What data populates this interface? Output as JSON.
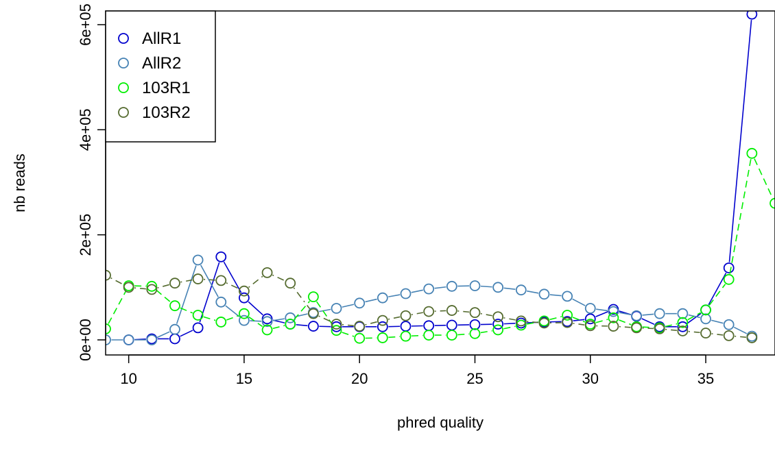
{
  "chart_data": {
    "type": "scatter",
    "xlabel": "phred quality",
    "ylabel": "nb reads",
    "xlim": [
      9,
      38
    ],
    "ylim": [
      0,
      620000
    ],
    "x_ticks": [
      10,
      15,
      20,
      25,
      30,
      35
    ],
    "y_ticks": [
      0,
      200000,
      400000,
      600000
    ],
    "y_tick_labels": [
      "0e+00",
      "2e+05",
      "4e+05",
      "6e+05"
    ],
    "grid": false,
    "legend_position": "top-left",
    "x": [
      9,
      10,
      11,
      12,
      13,
      14,
      15,
      16,
      17,
      18,
      19,
      20,
      21,
      22,
      23,
      24,
      25,
      26,
      27,
      28,
      29,
      30,
      31,
      32,
      33,
      34,
      35,
      36,
      37,
      38
    ],
    "series": [
      {
        "name": "AllR1",
        "color": "#0000CD",
        "line_style": "solid",
        "values": [
          null,
          0,
          2000,
          2000,
          23000,
          158000,
          80000,
          40000,
          30000,
          26000,
          25000,
          25000,
          25000,
          26000,
          27000,
          28000,
          29000,
          30000,
          32000,
          34000,
          35000,
          40000,
          58000,
          45000,
          25000,
          25000,
          57000,
          137000,
          620000,
          null
        ]
      },
      {
        "name": "AllR2",
        "color": "#4682B4",
        "line_style": "solid",
        "values": [
          0,
          0,
          0,
          20000,
          152000,
          72000,
          37000,
          35000,
          42000,
          52000,
          60000,
          70000,
          80000,
          88000,
          97000,
          102000,
          103000,
          100000,
          95000,
          87000,
          83000,
          60000,
          54000,
          46000,
          50000,
          50000,
          40000,
          29000,
          7000,
          null
        ]
      },
      {
        "name": "103R1",
        "color": "#00EE00",
        "line_style": "dashed",
        "values": [
          21000,
          103000,
          102000,
          65000,
          47000,
          34000,
          50000,
          19000,
          30000,
          82000,
          18000,
          3000,
          4000,
          7000,
          9000,
          9000,
          12000,
          19000,
          28000,
          36000,
          47000,
          30000,
          42000,
          25000,
          23000,
          33000,
          57000,
          115000,
          355000,
          260000
        ]
      },
      {
        "name": "103R2",
        "color": "#556B2F",
        "line_style": "dotdash",
        "values": [
          123000,
          100000,
          96000,
          108000,
          116000,
          113000,
          93000,
          128000,
          108000,
          50000,
          30000,
          26000,
          37000,
          46000,
          54000,
          56000,
          52000,
          44000,
          36000,
          32000,
          33000,
          27000,
          26000,
          23000,
          21000,
          17000,
          13000,
          8000,
          4000,
          null
        ]
      }
    ]
  }
}
